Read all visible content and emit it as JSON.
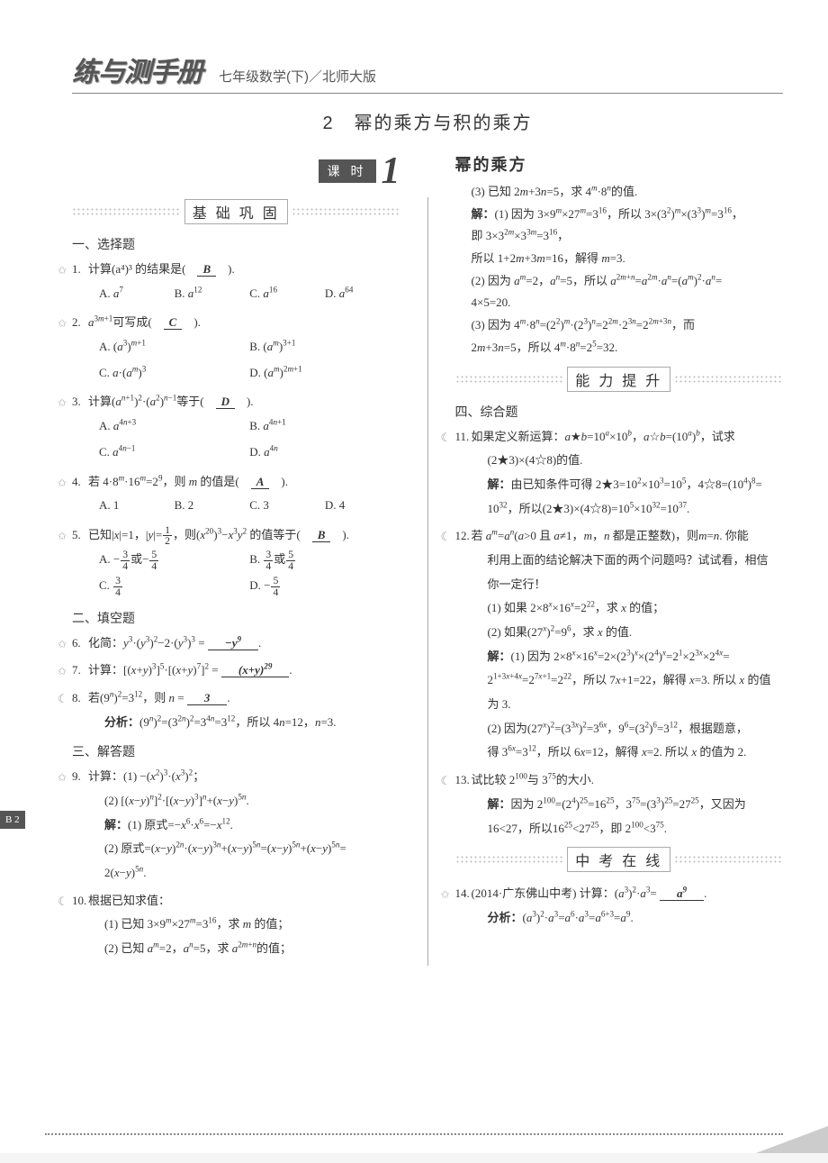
{
  "header": {
    "logo": "练与测手册",
    "subtitle": "七年级数学(下)／北师大版"
  },
  "chapter": "2　幂的乘方与积的乘方",
  "lesson_box": "课 时",
  "big_num": "1",
  "topic": "幂的乘方",
  "bands": {
    "basic": "基 础 巩 固",
    "ability": "能 力 提 升",
    "exam": "中 考 在 线"
  },
  "page_tab": "B 2",
  "sections": {
    "s1": "一、选择题",
    "s2": "二、填空题",
    "s3": "三、解答题",
    "s4": "四、综合题"
  },
  "q1": {
    "text": "计算(a⁴)³ 的结果是(　",
    "ans": "B",
    "tail": "　).",
    "opts": [
      "A. a⁷",
      "B. a¹²",
      "C. a¹⁶",
      "D. a⁶⁴"
    ]
  },
  "q2": {
    "text": "a³ᵐ⁺¹可写成(　",
    "ans": "C",
    "tail": "　).",
    "opts": [
      "A. (a³)ᵐ⁺¹",
      "B. (aᵐ)³⁺¹",
      "C. a·(aᵐ)³",
      "D. (aᵐ)²ᵐ⁺¹"
    ]
  },
  "q3": {
    "text": "计算(aⁿ⁺¹)²·(a²)ⁿ⁻¹等于(　",
    "ans": "D",
    "tail": "　).",
    "opts": [
      "A. a⁴ⁿ⁺³",
      "B. a⁴ⁿ⁺¹",
      "C. a⁴ⁿ⁻¹",
      "D. a⁴ⁿ"
    ]
  },
  "q4": {
    "text": "若 4·8ᵐ·16ᵐ=2⁹，则 m 的值是(　",
    "ans": "A",
    "tail": "　).",
    "opts": [
      "A. 1",
      "B. 2",
      "C. 3",
      "D. 4"
    ]
  },
  "q5": {
    "text_a": "已知|x|=1，|y|=",
    "text_b": "，则(x²⁰)³−x³y² 的值等于(　",
    "ans": "B",
    "tail": "　)."
  },
  "q6": {
    "text": "化简：y³·(y³)²−2·(y³)³ = ",
    "ans": "−y⁹",
    "tail": "　."
  },
  "q7": {
    "text": "计算：[(x+y)³]⁵·[(x+y)⁷]² = ",
    "ans": "(x+y)²⁹",
    "tail": "　."
  },
  "q8": {
    "text": "若(9ⁿ)²=3¹²，则 n = ",
    "ans": "3",
    "tail": "　.",
    "analysis_label": "分析：",
    "analysis": "(9ⁿ)²=(3²ⁿ)²=3⁴ⁿ=3¹²，所以 4n=12，n=3."
  },
  "q9": {
    "text": "计算：(1) −(x²)³·(x³)²；",
    "l2": "(2) [(x−y)ⁿ]²·[(x−y)³]ⁿ+(x−y)⁵ⁿ.",
    "sol_label": "解：",
    "s1": "(1) 原式=−x⁶·x⁶=−x¹².",
    "s2": "(2) 原式=(x−y)²ⁿ·(x−y)³ⁿ+(x−y)⁵ⁿ=(x−y)⁵ⁿ+(x−y)⁵ⁿ=",
    "s3": "2(x−y)⁵ⁿ."
  },
  "q10": {
    "text": "根据已知求值：",
    "l1": "(1) 已知 3×9ᵐ×27ᵐ=3¹⁶，求 m 的值；",
    "l2": "(2) 已知 aᵐ=2，aⁿ=5，求 a²ᵐ⁺ⁿ的值；",
    "l3": "(3) 已知 2m+3n=5，求 4ᵐ·8ⁿ的值.",
    "sol_label": "解：",
    "s1a": "(1) 因为 3×9ᵐ×27ᵐ=3¹⁶，所以 3×(3²)ᵐ×(3³)ᵐ=3¹⁶，",
    "s1b": "即 3×3²ᵐ×3³ᵐ=3¹⁶，",
    "s1c": "所以 1+2m+3m=16，解得 m=3.",
    "s2": "(2) 因为 aᵐ=2，aⁿ=5，所以 a²ᵐ⁺ⁿ=a²ᵐ·aⁿ=(aᵐ)²·aⁿ=",
    "s2b": "4×5=20.",
    "s3": "(3) 因为 4ᵐ·8ⁿ=(2²)ᵐ·(2³)ⁿ=2²ᵐ·2³ⁿ=2²ᵐ⁺³ⁿ，而",
    "s3b": "2m+3n=5，所以 4ᵐ·8ⁿ=2⁵=32."
  },
  "q11": {
    "text": "如果定义新运算：a★b=10ᵃ×10ᵇ，a☆b=(10ᵃ)ᵇ，试求",
    "l2": "(2★3)×(4☆8)的值.",
    "sol_label": "解：",
    "s1": "由已知条件可得 2★3=10²×10³=10⁵，4☆8=(10⁴)⁸=",
    "s2": "10³²，所以(2★3)×(4☆8)=10⁵×10³²=10³⁷."
  },
  "q12": {
    "text": "若 aᵐ=aⁿ(a>0 且 a≠1，m，n 都是正整数)，则m=n. 你能",
    "l2": "利用上面的结论解决下面的两个问题吗？试试看，相信",
    "l3": "你一定行！",
    "p1": "(1) 如果 2×8ˣ×16ˣ=2²²，求 x 的值；",
    "p2": "(2) 如果(27ˣ)²=9⁶，求 x 的值.",
    "sol_label": "解：",
    "s1": "(1) 因为 2×8ˣ×16ˣ=2×(2³)ˣ×(2⁴)ˣ=2¹×2³ˣ×2⁴ˣ=",
    "s1b": "2¹⁺³ˣ⁺⁴ˣ=2⁷ˣ⁺¹=2²²，所以 7x+1=22，解得 x=3. 所以 x 的值",
    "s1c": "为 3.",
    "s2": "(2) 因为(27ˣ)²=(3³ˣ)²=3⁶ˣ，9⁶=(3²)⁶=3¹²，根据题意，",
    "s2b": "得 3⁶ˣ=3¹²，所以 6x=12，解得 x=2. 所以 x 的值为 2."
  },
  "q13": {
    "text": "试比较 2¹⁰⁰与 3⁷⁵的大小.",
    "sol_label": "解：",
    "s1": "因为 2¹⁰⁰=(2⁴)²⁵=16²⁵，3⁷⁵=(3³)²⁵=27²⁵，又因为",
    "s2": "16<27，所以16²⁵<27²⁵，即 2¹⁰⁰<3⁷⁵."
  },
  "q14": {
    "text": "(2014·广东佛山中考) 计算：(a³)²·a³= ",
    "ans": "a⁹",
    "tail": "　.",
    "analysis_label": "分析：",
    "analysis": "(a³)²·a³=a⁶·a³=a⁶⁺³=a⁹."
  }
}
